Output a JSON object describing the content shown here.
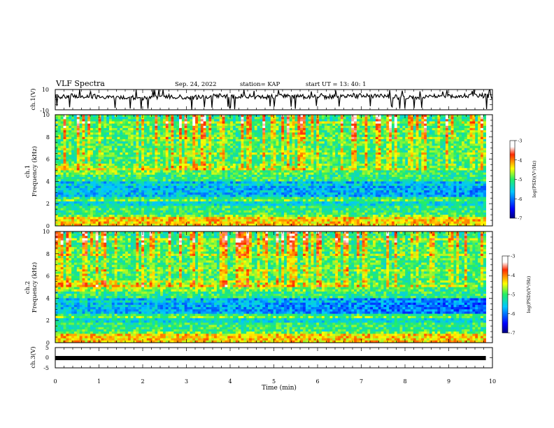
{
  "header": {
    "title": "VLF Spectra",
    "date": "Sep. 24, 2022",
    "station": "station= KAP",
    "start": "start  UT  =   13: 40: 1"
  },
  "chart_data": [
    {
      "type": "line",
      "ylabel": "ch.1(V)",
      "ylim": [
        -10,
        10
      ],
      "y_ticks": [
        "10",
        "-10"
      ],
      "x_range_min": [
        0,
        10
      ],
      "trace_rms": 2.2,
      "color": "#000000"
    },
    {
      "type": "heatmap",
      "ylabel_top": "ch.1",
      "ylabel": "Frequency (kHz)",
      "ylim": [
        0,
        10
      ],
      "y_ticks": [
        "0",
        "2",
        "4",
        "6",
        "8",
        "10"
      ],
      "x_range_min": [
        0,
        9.85
      ],
      "colorbar": {
        "label": "log(PSD)(V²/Hz)",
        "range": [
          -7,
          -3
        ],
        "ticks": [
          "-3",
          "-4",
          "-5",
          "-6",
          "-7"
        ]
      }
    },
    {
      "type": "heatmap",
      "ylabel_top": "ch.2",
      "ylabel": "Frequency (kHz)",
      "ylim": [
        0,
        10
      ],
      "y_ticks": [
        "0",
        "2",
        "4",
        "6",
        "8",
        "10"
      ],
      "x_range_min": [
        0,
        9.85
      ],
      "colorbar": {
        "label": "log(PSD)(V²/Hz)",
        "range": [
          -7,
          -3
        ],
        "ticks": [
          "-3",
          "-4",
          "-5",
          "-6",
          "-7"
        ]
      }
    },
    {
      "type": "line",
      "ylabel": "ch.3(V)",
      "ylim": [
        -5,
        5
      ],
      "y_ticks": [
        "5",
        "0",
        "-5"
      ],
      "constant_value": 0,
      "x_range_min": [
        0,
        9.85
      ],
      "color": "#000000"
    }
  ],
  "xaxis": {
    "label": "Time (min)",
    "range": [
      0,
      10
    ],
    "ticks": [
      "0",
      "1",
      "2",
      "3",
      "4",
      "5",
      "6",
      "7",
      "8",
      "9",
      "10"
    ]
  }
}
